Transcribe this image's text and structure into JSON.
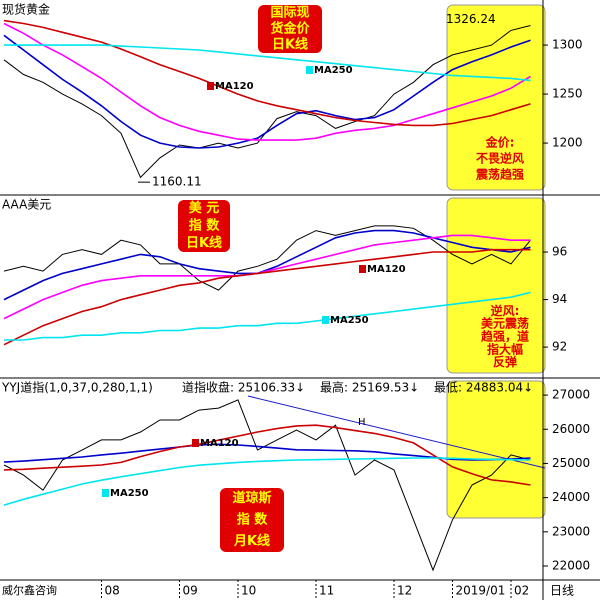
{
  "chart_data": [
    {
      "type": "line",
      "title": "现货黄金",
      "ylim": [
        1147,
        1346
      ],
      "yticks": [
        1200,
        1250,
        1300
      ],
      "high": 1326.24,
      "low": 1160.11,
      "notes": [
        {
          "lines": [
            "国际现",
            "货金价",
            "日K线"
          ]
        },
        {
          "lines": [
            "金价:",
            "不畏逆风",
            "震荡趋强"
          ]
        }
      ],
      "series": [
        {
          "color": "#000000",
          "values": [
            1285,
            1270,
            1262,
            1250,
            1240,
            1228,
            1210,
            1165,
            1185,
            1198,
            1195,
            1200,
            1195,
            1200,
            1225,
            1232,
            1228,
            1215,
            1222,
            1228,
            1250,
            1262,
            1280,
            1290,
            1295,
            1300,
            1315,
            1320
          ]
        },
        {
          "color": "#0000cc",
          "values": [
            1310,
            1295,
            1280,
            1265,
            1252,
            1238,
            1222,
            1208,
            1200,
            1196,
            1195,
            1196,
            1200,
            1205,
            1218,
            1230,
            1233,
            1228,
            1224,
            1226,
            1234,
            1248,
            1262,
            1275,
            1283,
            1290,
            1298,
            1305
          ]
        },
        {
          "color": "#ff00ff",
          "values": [
            1322,
            1312,
            1300,
            1290,
            1278,
            1266,
            1252,
            1238,
            1226,
            1218,
            1212,
            1208,
            1204,
            1203,
            1203,
            1203,
            1205,
            1210,
            1213,
            1215,
            1218,
            1224,
            1230,
            1236,
            1242,
            1248,
            1256,
            1268
          ]
        },
        {
          "name": "MA120",
          "color": "#cc0000",
          "values": [
            1325,
            1322,
            1318,
            1313,
            1308,
            1303,
            1296,
            1288,
            1280,
            1273,
            1266,
            1258,
            1250,
            1243,
            1238,
            1234,
            1230,
            1226,
            1223,
            1221,
            1219,
            1218,
            1218,
            1220,
            1224,
            1228,
            1234,
            1240
          ]
        },
        {
          "name": "MA250",
          "color": "#00e5ee",
          "values": [
            1300,
            1300,
            1300,
            1300,
            1300,
            1300,
            1299,
            1298,
            1297,
            1296,
            1295,
            1293,
            1291,
            1289,
            1287,
            1285,
            1283,
            1281,
            1279,
            1277,
            1275,
            1273,
            1271,
            1269,
            1268,
            1267,
            1266,
            1264
          ]
        }
      ]
    },
    {
      "type": "line",
      "title": "AAA美元",
      "ylim": [
        90.7,
        98.4
      ],
      "yticks": [
        92,
        94,
        96
      ],
      "notes": [
        {
          "lines": [
            "美 元",
            "指 数",
            "日K线"
          ]
        },
        {
          "lines": [
            "逆风:",
            "美元震荡",
            "趋强，道",
            "指大幅",
            "反弹"
          ]
        }
      ],
      "series": [
        {
          "color": "#000000",
          "values": [
            95.2,
            95.4,
            95.2,
            95.9,
            96.1,
            95.9,
            96.5,
            96.3,
            95.5,
            95.5,
            94.8,
            94.4,
            95.2,
            95.4,
            95.7,
            96.5,
            96.9,
            96.7,
            96.9,
            97.1,
            97.1,
            97.0,
            96.5,
            95.9,
            95.5,
            95.9,
            95.5,
            96.5
          ]
        },
        {
          "color": "#0000cc",
          "values": [
            94.0,
            94.4,
            94.8,
            95.1,
            95.3,
            95.5,
            95.7,
            95.9,
            95.8,
            95.5,
            95.3,
            95.2,
            95.1,
            95.1,
            95.4,
            95.8,
            96.2,
            96.6,
            96.8,
            96.9,
            96.9,
            96.8,
            96.6,
            96.4,
            96.2,
            96.1,
            96.0,
            96.2
          ]
        },
        {
          "color": "#ff00ff",
          "values": [
            93.2,
            93.6,
            94.0,
            94.3,
            94.6,
            94.8,
            94.9,
            95.0,
            95.0,
            95.0,
            95.0,
            95.0,
            95.0,
            95.1,
            95.3,
            95.5,
            95.7,
            95.9,
            96.1,
            96.3,
            96.4,
            96.5,
            96.6,
            96.7,
            96.7,
            96.6,
            96.5,
            96.5
          ]
        },
        {
          "name": "MA120",
          "color": "#cc0000",
          "values": [
            92.1,
            92.5,
            92.9,
            93.2,
            93.5,
            93.7,
            94.0,
            94.2,
            94.4,
            94.6,
            94.7,
            94.9,
            95.0,
            95.1,
            95.2,
            95.3,
            95.4,
            95.5,
            95.6,
            95.7,
            95.8,
            95.9,
            96.0,
            96.0,
            96.0,
            96.1,
            96.1,
            96.1
          ]
        },
        {
          "name": "MA250",
          "color": "#00e5ee",
          "values": [
            92.3,
            92.3,
            92.4,
            92.4,
            92.5,
            92.5,
            92.6,
            92.6,
            92.7,
            92.7,
            92.8,
            92.8,
            92.9,
            92.9,
            93.0,
            93.0,
            93.1,
            93.2,
            93.3,
            93.4,
            93.5,
            93.6,
            93.7,
            93.8,
            93.9,
            94.0,
            94.1,
            94.3
          ]
        }
      ]
    },
    {
      "type": "line",
      "title": "YYJ道指(1,0,37,0,280,1,1)",
      "stats": [
        "道指收盘: 25106.33↓",
        "最高: 25169.53↓",
        "最低: 24883.04↓"
      ],
      "ylim": [
        21590,
        27500
      ],
      "yticks": [
        22000,
        23000,
        24000,
        25000,
        26000,
        27000
      ],
      "marker": "H",
      "source": "威尔鑫咨询",
      "period": "日线",
      "categories": [
        null,
        null,
        null,
        null,
        null,
        "08",
        null,
        null,
        null,
        "09",
        null,
        null,
        "10",
        null,
        null,
        null,
        "11",
        null,
        null,
        null,
        "12",
        null,
        null,
        "2019/01",
        null,
        null,
        "02",
        null
      ],
      "notes": [
        {
          "lines": [
            "道琼斯",
            "指 数",
            "月K线"
          ]
        }
      ],
      "series": [
        {
          "color": "#000000",
          "values": [
            24955,
            24660,
            24220,
            25100,
            25390,
            25690,
            25690,
            25920,
            26270,
            26270,
            26560,
            26620,
            26860,
            25390,
            25690,
            25980,
            25690,
            26120,
            24660,
            25100,
            24810,
            23350,
            21880,
            23350,
            24370,
            24660,
            25250,
            25100
          ]
        },
        {
          "color": "#0000cc",
          "values": [
            25040,
            25070,
            25110,
            25150,
            25190,
            25250,
            25300,
            25360,
            25420,
            25480,
            25540,
            25560,
            25540,
            25500,
            25450,
            25400,
            25390,
            25380,
            25370,
            25340,
            25280,
            25230,
            25180,
            25120,
            25100,
            25110,
            25130,
            25160
          ]
        },
        {
          "name": "MA120",
          "color": "#cc0000",
          "values": [
            24810,
            24830,
            24860,
            24890,
            24920,
            24955,
            25030,
            25200,
            25350,
            25480,
            25560,
            25680,
            25800,
            25920,
            26020,
            26100,
            26120,
            26050,
            25960,
            25880,
            25760,
            25600,
            25250,
            24900,
            24700,
            24520,
            24460,
            24370
          ]
        },
        {
          "name": "MA250",
          "color": "#00e5ee",
          "values": [
            23780,
            23950,
            24100,
            24250,
            24400,
            24510,
            24610,
            24700,
            24790,
            24880,
            24950,
            24990,
            25030,
            25060,
            25080,
            25100,
            25110,
            25120,
            25130,
            25140,
            25150,
            25160,
            25160,
            25150,
            25130,
            25120,
            25110,
            25100
          ]
        }
      ]
    }
  ]
}
